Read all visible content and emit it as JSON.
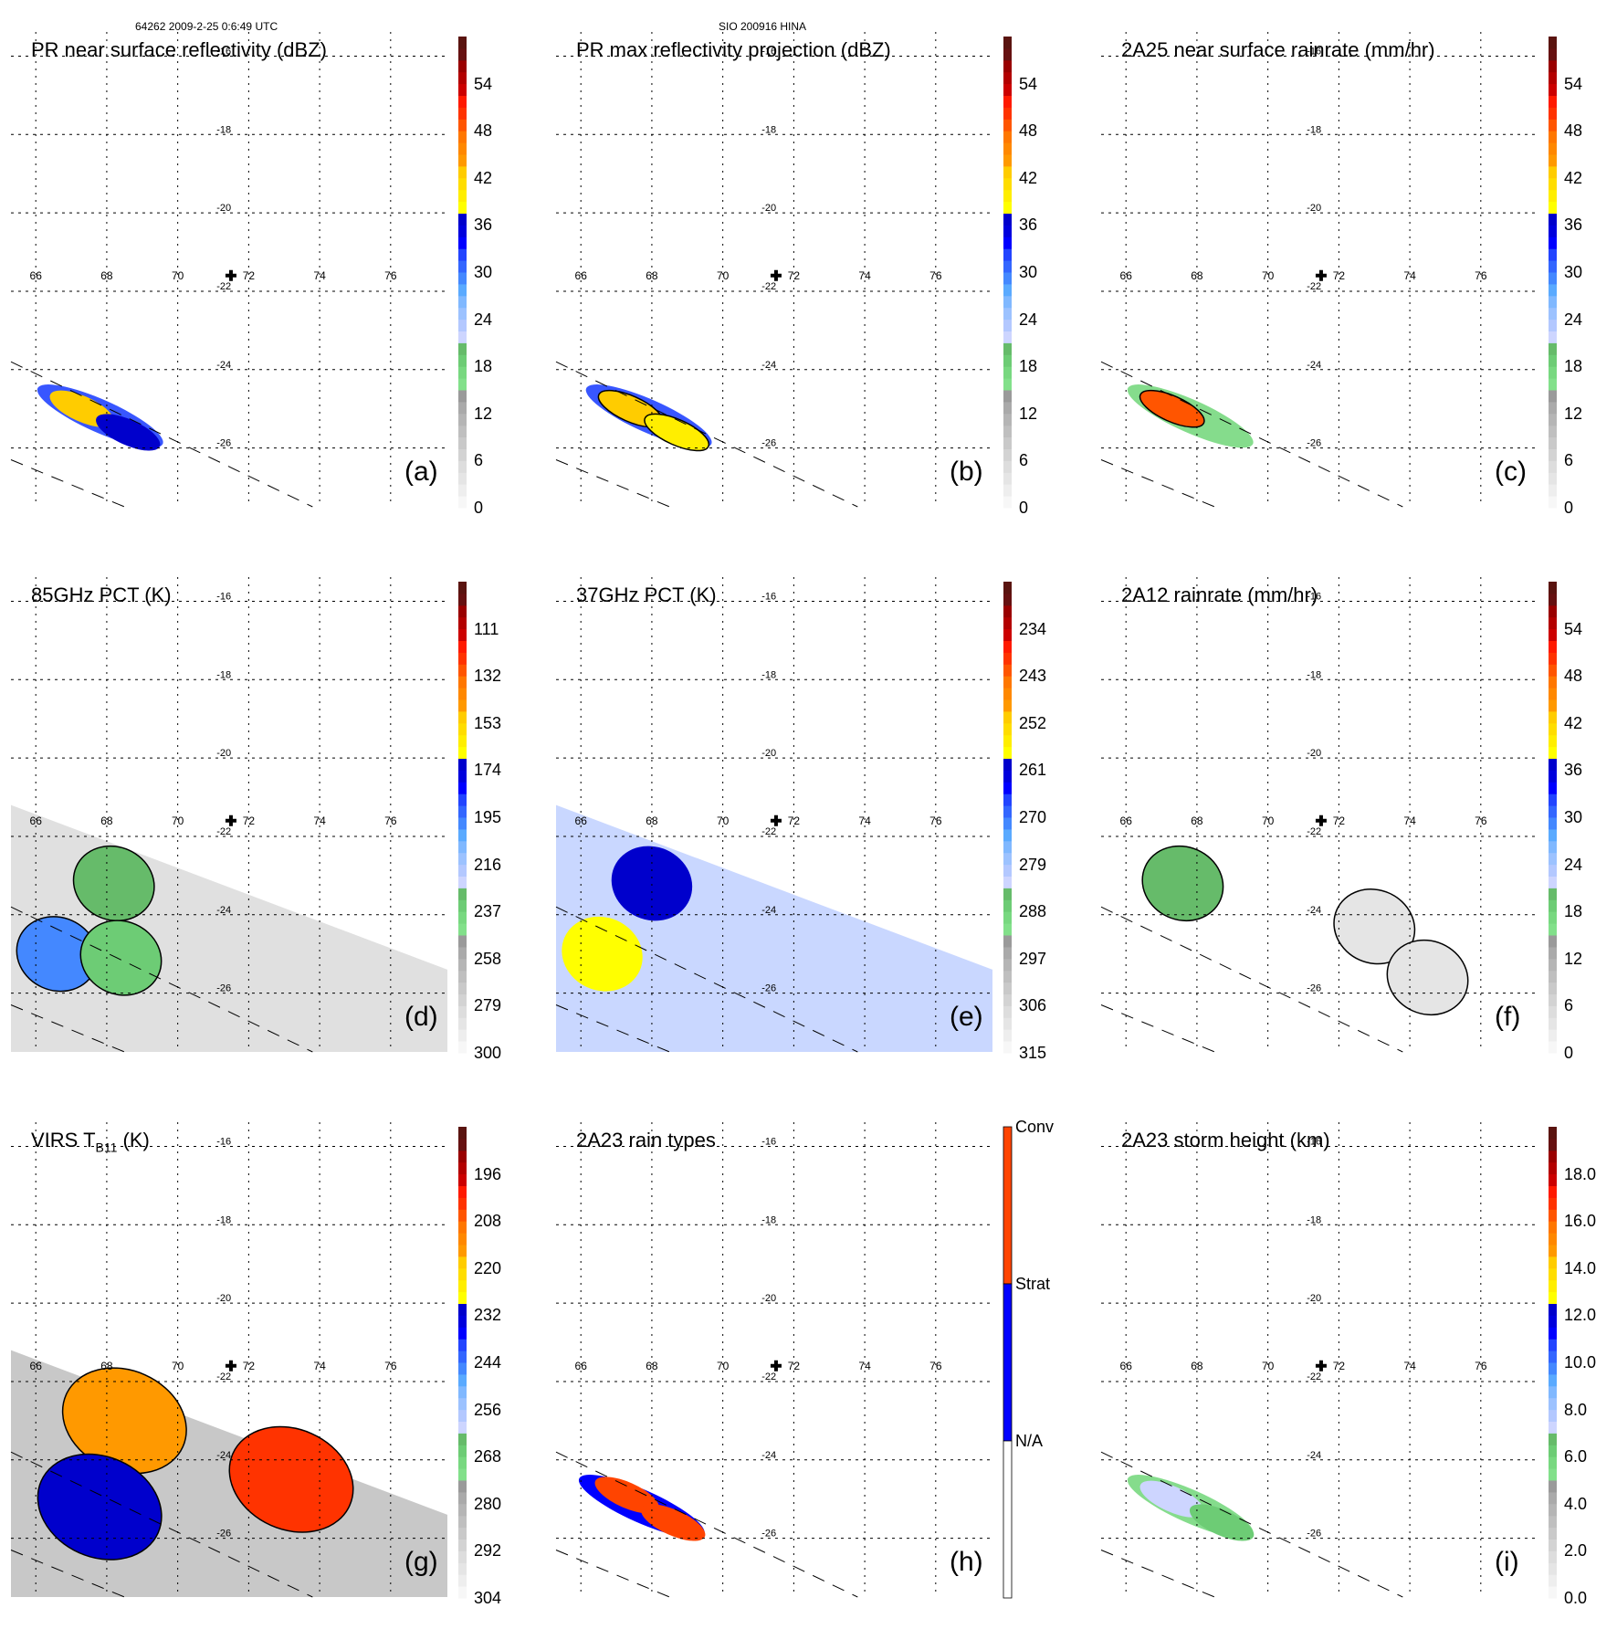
{
  "header": {
    "left_text": "64262 2009-2-25 0:6:49 UTC",
    "center_text": "SIO 200916 HINA"
  },
  "map_axes": {
    "lon_ticks": [
      "66",
      "68",
      "70",
      "72",
      "74",
      "76"
    ],
    "lat_ticks": [
      "-16",
      "-18",
      "-20",
      "-22",
      "-24",
      "-26"
    ],
    "lon_range": [
      65.3,
      77.6
    ],
    "lat_range": [
      -27.5,
      -15.5
    ],
    "storm_center": {
      "lon": 71.5,
      "lat": -21.6,
      "marker": "plus-icon"
    },
    "grid": "dotted"
  },
  "chart_data": [
    {
      "type": "heatmap",
      "id": "a",
      "title": "PR near surface reflectivity (dBZ)",
      "panel_label": "(a)",
      "colorbar_ticks": [
        "54",
        "48",
        "42",
        "36",
        "30",
        "24",
        "18",
        "12",
        "6",
        "0"
      ],
      "colorbar_range": [
        0,
        60
      ],
      "swath": "PR",
      "features": [
        {
          "lon": 67.3,
          "lat": -25.0,
          "value": 42,
          "kind": "convective-core"
        },
        {
          "lon": 68.6,
          "lat": -25.6,
          "value": 36,
          "kind": "convective-core"
        }
      ]
    },
    {
      "type": "heatmap",
      "id": "b",
      "title": "PR max reflectivity projection (dBZ)",
      "panel_label": "(b)",
      "colorbar_ticks": [
        "54",
        "48",
        "42",
        "36",
        "30",
        "24",
        "18",
        "12",
        "6",
        "0"
      ],
      "colorbar_range": [
        0,
        60
      ],
      "swath": "PR",
      "features": [
        {
          "lon": 67.4,
          "lat": -25.0,
          "value": 42,
          "kind": "convective-core"
        },
        {
          "lon": 68.7,
          "lat": -25.6,
          "value": 40,
          "kind": "convective-core"
        }
      ]
    },
    {
      "type": "heatmap",
      "id": "c",
      "title": "2A25 near surface rainrate (mm/hr)",
      "panel_label": "(c)",
      "colorbar_ticks": [
        "54",
        "48",
        "42",
        "36",
        "30",
        "24",
        "18",
        "12",
        "6",
        "0"
      ],
      "colorbar_range": [
        0,
        60
      ],
      "swath": "PR",
      "features": [
        {
          "lon": 67.3,
          "lat": -25.0,
          "value": 48,
          "kind": "peak"
        }
      ]
    },
    {
      "type": "heatmap",
      "id": "d",
      "title": "85GHz PCT (K)",
      "panel_label": "(d)",
      "colorbar_ticks": [
        "111",
        "132",
        "153",
        "174",
        "195",
        "216",
        "237",
        "258",
        "279",
        "300"
      ],
      "colorbar_range": [
        300,
        90
      ],
      "swath": "TMI",
      "features": [
        {
          "lon": 68.2,
          "lat": -23.2,
          "value": 230,
          "kind": "cold-region"
        },
        {
          "lon": 66.6,
          "lat": -25.0,
          "value": 200,
          "kind": "cold-region"
        },
        {
          "lon": 68.4,
          "lat": -25.1,
          "value": 235,
          "kind": "cold-region"
        }
      ]
    },
    {
      "type": "heatmap",
      "id": "e",
      "title": "37GHz PCT (K)",
      "panel_label": "(e)",
      "colorbar_ticks": [
        "234",
        "243",
        "252",
        "261",
        "270",
        "279",
        "288",
        "297",
        "306",
        "315"
      ],
      "colorbar_range": [
        315,
        225
      ],
      "swath": "TMI",
      "features": [
        {
          "lon": 68.0,
          "lat": -23.2,
          "value": 260,
          "kind": "cold-region"
        },
        {
          "lon": 66.6,
          "lat": -25.0,
          "value": 258,
          "kind": "cold-region"
        }
      ]
    },
    {
      "type": "heatmap",
      "id": "f",
      "title": "2A12 rainrate (mm/hr)",
      "panel_label": "(f)",
      "colorbar_ticks": [
        "54",
        "48",
        "42",
        "36",
        "30",
        "24",
        "18",
        "12",
        "6",
        "0"
      ],
      "colorbar_range": [
        0,
        60
      ],
      "swath": "TMI",
      "features": [
        {
          "lon": 67.6,
          "lat": -23.2,
          "value": 20,
          "kind": "peak"
        },
        {
          "lon": 73.0,
          "lat": -24.3,
          "value": 4,
          "kind": "rain-band"
        },
        {
          "lon": 74.5,
          "lat": -25.6,
          "value": 3,
          "kind": "rain-band"
        }
      ]
    },
    {
      "type": "heatmap",
      "id": "g",
      "title": "VIRS T",
      "title_subscript": "B11",
      "title_suffix": " (K)",
      "panel_label": "(g)",
      "colorbar_ticks": [
        "196",
        "208",
        "220",
        "232",
        "244",
        "256",
        "268",
        "280",
        "292",
        "304"
      ],
      "colorbar_range": [
        304,
        184
      ],
      "swath": "VIRS",
      "features": [
        {
          "lon": 68.5,
          "lat": -23.0,
          "value": 215,
          "kind": "cold-cloud-top"
        },
        {
          "lon": 73.2,
          "lat": -24.5,
          "value": 205,
          "kind": "cold-cloud-top"
        },
        {
          "lon": 67.8,
          "lat": -25.2,
          "value": 230,
          "kind": "cold-cloud-top"
        }
      ]
    },
    {
      "type": "heatmap",
      "id": "h",
      "title": "2A23 rain types",
      "panel_label": "(h)",
      "colorbar_categories": [
        {
          "label": "Conv",
          "color": "#ff4400"
        },
        {
          "label": "Strat",
          "color": "#0000ff"
        },
        {
          "label": "N/A",
          "color": "#ffffff"
        }
      ],
      "swath": "PR",
      "features": [
        {
          "lon": 67.2,
          "lat": -25.0,
          "value": "Strat",
          "kind": "region"
        },
        {
          "lon": 67.3,
          "lat": -24.9,
          "value": "Conv",
          "kind": "line"
        },
        {
          "lon": 68.6,
          "lat": -25.6,
          "value": "Conv",
          "kind": "line"
        }
      ]
    },
    {
      "type": "heatmap",
      "id": "i",
      "title": "2A23 storm height (km)",
      "panel_label": "(i)",
      "colorbar_ticks": [
        "18.0",
        "16.0",
        "14.0",
        "12.0",
        "10.0",
        "8.0",
        "6.0",
        "4.0",
        "2.0",
        "0.0"
      ],
      "colorbar_range": [
        0,
        20
      ],
      "swath": "PR",
      "features": [
        {
          "lon": 67.3,
          "lat": -25.0,
          "value": 7,
          "kind": "region"
        },
        {
          "lon": 68.7,
          "lat": -25.6,
          "value": 6,
          "kind": "region"
        }
      ]
    }
  ],
  "colors": {
    "scale": [
      "#f7f7f7",
      "#eeeeee",
      "#e5e5e5",
      "#dddddd",
      "#d3d3d3",
      "#c9c9c9",
      "#bfbfbf",
      "#b5b5b5",
      "#aaaaaa",
      "#9a9a9a",
      "#82e08a",
      "#78d880",
      "#6dcc75",
      "#66bb6a",
      "#cdd5ff",
      "#b3c8ff",
      "#9cc2ff",
      "#80b8ff",
      "#5aaaff",
      "#4488ff",
      "#3366ff",
      "#2244ff",
      "#0000ff",
      "#0000dd",
      "#0000cc",
      "#ffff00",
      "#ffee00",
      "#ffdd00",
      "#ffcc00",
      "#ff9900",
      "#ff8800",
      "#ff7700",
      "#ff5500",
      "#ff3300",
      "#ff1a00",
      "#cc0000",
      "#b30000",
      "#990000",
      "#661111",
      "#5a1410"
    ],
    "conv": "#ff4400",
    "strat": "#0000ff",
    "na": "#ffffff"
  }
}
